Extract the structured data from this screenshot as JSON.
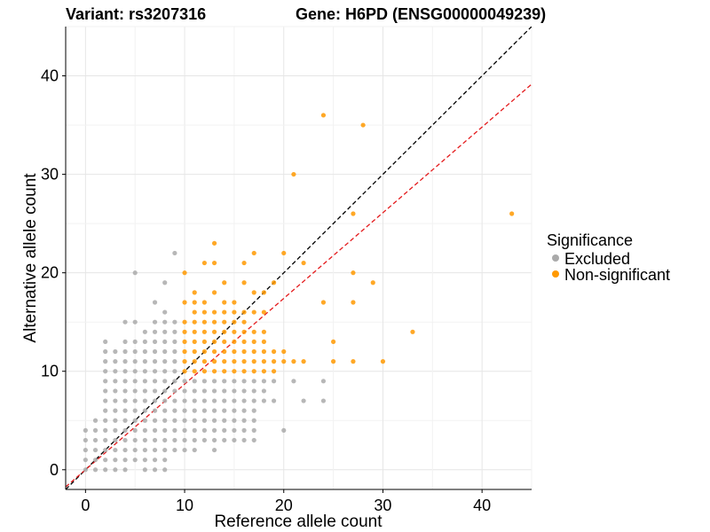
{
  "chart_data": {
    "type": "scatter",
    "title_left": "Variant: rs3207316",
    "title_right": "Gene: H6PD (ENSG00000049239)",
    "xlabel": "Reference allele count",
    "ylabel": "Alternative allele count",
    "xlim": [
      -2,
      45
    ],
    "ylim": [
      -2,
      45
    ],
    "xticks": [
      0,
      10,
      20,
      30,
      40
    ],
    "yticks": [
      0,
      10,
      20,
      30,
      40
    ],
    "grid": true,
    "legend": {
      "title": "Significance",
      "position": "right",
      "entries": [
        {
          "label": "Excluded",
          "color": "#AAAAAA"
        },
        {
          "label": "Non-significant",
          "color": "#FF9900"
        }
      ]
    },
    "reference_lines": [
      {
        "name": "identity",
        "slope": 1,
        "intercept": 0,
        "color": "#000000",
        "dash": true
      },
      {
        "name": "fit",
        "slope": 0.87,
        "intercept": 0,
        "color": "#E41A1C",
        "dash": true
      }
    ],
    "series": [
      {
        "color": "#AAAAAA",
        "points": [
          [
            0,
            0
          ],
          [
            0,
            1
          ],
          [
            0,
            2
          ],
          [
            0,
            3
          ],
          [
            0,
            4
          ],
          [
            1,
            0
          ],
          [
            1,
            1
          ],
          [
            1,
            2
          ],
          [
            1,
            3
          ],
          [
            1,
            4
          ],
          [
            1,
            5
          ],
          [
            2,
            0
          ],
          [
            2,
            1
          ],
          [
            2,
            2
          ],
          [
            2,
            3
          ],
          [
            2,
            4
          ],
          [
            2,
            5
          ],
          [
            2,
            6
          ],
          [
            2,
            7
          ],
          [
            2,
            8
          ],
          [
            2,
            9
          ],
          [
            2,
            10
          ],
          [
            2,
            11
          ],
          [
            2,
            12
          ],
          [
            2,
            13
          ],
          [
            3,
            0
          ],
          [
            3,
            1
          ],
          [
            3,
            2
          ],
          [
            3,
            3
          ],
          [
            3,
            4
          ],
          [
            3,
            5
          ],
          [
            3,
            6
          ],
          [
            3,
            7
          ],
          [
            3,
            8
          ],
          [
            3,
            9
          ],
          [
            3,
            10
          ],
          [
            3,
            11
          ],
          [
            3,
            12
          ],
          [
            4,
            0
          ],
          [
            4,
            1
          ],
          [
            4,
            2
          ],
          [
            4,
            3
          ],
          [
            4,
            4
          ],
          [
            4,
            5
          ],
          [
            4,
            6
          ],
          [
            4,
            7
          ],
          [
            4,
            8
          ],
          [
            4,
            9
          ],
          [
            4,
            10
          ],
          [
            4,
            11
          ],
          [
            4,
            12
          ],
          [
            4,
            13
          ],
          [
            4,
            15
          ],
          [
            5,
            1
          ],
          [
            5,
            2
          ],
          [
            5,
            3
          ],
          [
            5,
            4
          ],
          [
            5,
            5
          ],
          [
            5,
            6
          ],
          [
            5,
            7
          ],
          [
            5,
            8
          ],
          [
            5,
            9
          ],
          [
            5,
            10
          ],
          [
            5,
            11
          ],
          [
            5,
            12
          ],
          [
            5,
            13
          ],
          [
            5,
            15
          ],
          [
            5,
            20
          ],
          [
            6,
            0
          ],
          [
            6,
            1
          ],
          [
            6,
            2
          ],
          [
            6,
            3
          ],
          [
            6,
            4
          ],
          [
            6,
            5
          ],
          [
            6,
            6
          ],
          [
            6,
            7
          ],
          [
            6,
            8
          ],
          [
            6,
            9
          ],
          [
            6,
            10
          ],
          [
            6,
            11
          ],
          [
            6,
            12
          ],
          [
            6,
            13
          ],
          [
            6,
            14
          ],
          [
            7,
            0
          ],
          [
            7,
            1
          ],
          [
            7,
            2
          ],
          [
            7,
            3
          ],
          [
            7,
            4
          ],
          [
            7,
            5
          ],
          [
            7,
            6
          ],
          [
            7,
            7
          ],
          [
            7,
            8
          ],
          [
            7,
            9
          ],
          [
            7,
            10
          ],
          [
            7,
            11
          ],
          [
            7,
            12
          ],
          [
            7,
            13
          ],
          [
            7,
            14
          ],
          [
            7,
            15
          ],
          [
            7,
            17
          ],
          [
            8,
            0
          ],
          [
            8,
            1
          ],
          [
            8,
            2
          ],
          [
            8,
            3
          ],
          [
            8,
            4
          ],
          [
            8,
            5
          ],
          [
            8,
            6
          ],
          [
            8,
            7
          ],
          [
            8,
            8
          ],
          [
            8,
            9
          ],
          [
            8,
            10
          ],
          [
            8,
            11
          ],
          [
            8,
            12
          ],
          [
            8,
            13
          ],
          [
            8,
            14
          ],
          [
            8,
            15
          ],
          [
            8,
            16
          ],
          [
            8,
            19
          ],
          [
            9,
            2
          ],
          [
            9,
            3
          ],
          [
            9,
            4
          ],
          [
            9,
            5
          ],
          [
            9,
            6
          ],
          [
            9,
            7
          ],
          [
            9,
            8
          ],
          [
            9,
            9
          ],
          [
            9,
            10
          ],
          [
            9,
            11
          ],
          [
            9,
            12
          ],
          [
            9,
            13
          ],
          [
            9,
            14
          ],
          [
            9,
            15
          ],
          [
            9,
            22
          ],
          [
            10,
            2
          ],
          [
            10,
            3
          ],
          [
            10,
            4
          ],
          [
            10,
            5
          ],
          [
            10,
            6
          ],
          [
            10,
            7
          ],
          [
            10,
            8
          ],
          [
            10,
            9
          ],
          [
            11,
            2
          ],
          [
            11,
            3
          ],
          [
            11,
            4
          ],
          [
            11,
            5
          ],
          [
            11,
            6
          ],
          [
            11,
            7
          ],
          [
            11,
            8
          ],
          [
            11,
            9
          ],
          [
            12,
            3
          ],
          [
            12,
            4
          ],
          [
            12,
            5
          ],
          [
            12,
            6
          ],
          [
            12,
            7
          ],
          [
            12,
            8
          ],
          [
            12,
            9
          ],
          [
            13,
            2
          ],
          [
            13,
            3
          ],
          [
            13,
            4
          ],
          [
            13,
            5
          ],
          [
            13,
            6
          ],
          [
            13,
            7
          ],
          [
            13,
            8
          ],
          [
            13,
            9
          ],
          [
            14,
            3
          ],
          [
            14,
            4
          ],
          [
            14,
            5
          ],
          [
            14,
            6
          ],
          [
            14,
            7
          ],
          [
            14,
            8
          ],
          [
            14,
            9
          ],
          [
            15,
            3
          ],
          [
            15,
            4
          ],
          [
            15,
            5
          ],
          [
            15,
            6
          ],
          [
            15,
            7
          ],
          [
            15,
            8
          ],
          [
            15,
            9
          ],
          [
            16,
            3
          ],
          [
            16,
            4
          ],
          [
            16,
            5
          ],
          [
            16,
            6
          ],
          [
            16,
            7
          ],
          [
            16,
            8
          ],
          [
            16,
            9
          ],
          [
            17,
            3
          ],
          [
            17,
            4
          ],
          [
            17,
            5
          ],
          [
            17,
            6
          ],
          [
            17,
            7
          ],
          [
            17,
            8
          ],
          [
            17,
            9
          ],
          [
            18,
            7
          ],
          [
            18,
            8
          ],
          [
            18,
            9
          ],
          [
            19,
            7
          ],
          [
            19,
            9
          ],
          [
            20,
            4
          ],
          [
            21,
            9
          ],
          [
            22,
            7
          ],
          [
            24,
            7
          ],
          [
            24,
            9
          ]
        ]
      },
      {
        "color": "#FF9900",
        "points": [
          [
            10,
            10
          ],
          [
            10,
            11
          ],
          [
            10,
            12
          ],
          [
            10,
            13
          ],
          [
            10,
            14
          ],
          [
            10,
            15
          ],
          [
            10,
            17
          ],
          [
            10,
            20
          ],
          [
            11,
            10
          ],
          [
            11,
            11
          ],
          [
            11,
            12
          ],
          [
            11,
            13
          ],
          [
            11,
            14
          ],
          [
            11,
            15
          ],
          [
            11,
            16
          ],
          [
            11,
            17
          ],
          [
            11,
            18
          ],
          [
            12,
            10
          ],
          [
            12,
            11
          ],
          [
            12,
            12
          ],
          [
            12,
            13
          ],
          [
            12,
            14
          ],
          [
            12,
            15
          ],
          [
            12,
            16
          ],
          [
            12,
            17
          ],
          [
            12,
            21
          ],
          [
            13,
            10
          ],
          [
            13,
            11
          ],
          [
            13,
            12
          ],
          [
            13,
            13
          ],
          [
            13,
            14
          ],
          [
            13,
            15
          ],
          [
            13,
            16
          ],
          [
            13,
            18
          ],
          [
            13,
            21
          ],
          [
            13,
            23
          ],
          [
            14,
            10
          ],
          [
            14,
            11
          ],
          [
            14,
            12
          ],
          [
            14,
            13
          ],
          [
            14,
            14
          ],
          [
            14,
            15
          ],
          [
            14,
            16
          ],
          [
            14,
            17
          ],
          [
            14,
            19
          ],
          [
            15,
            10
          ],
          [
            15,
            11
          ],
          [
            15,
            12
          ],
          [
            15,
            13
          ],
          [
            15,
            14
          ],
          [
            15,
            15
          ],
          [
            15,
            16
          ],
          [
            15,
            17
          ],
          [
            16,
            10
          ],
          [
            16,
            11
          ],
          [
            16,
            12
          ],
          [
            16,
            13
          ],
          [
            16,
            14
          ],
          [
            16,
            15
          ],
          [
            16,
            16
          ],
          [
            16,
            19
          ],
          [
            16,
            21
          ],
          [
            17,
            10
          ],
          [
            17,
            11
          ],
          [
            17,
            12
          ],
          [
            17,
            13
          ],
          [
            17,
            14
          ],
          [
            17,
            16
          ],
          [
            17,
            18
          ],
          [
            17,
            22
          ],
          [
            18,
            10
          ],
          [
            18,
            11
          ],
          [
            18,
            12
          ],
          [
            18,
            13
          ],
          [
            18,
            14
          ],
          [
            18,
            16
          ],
          [
            18,
            18
          ],
          [
            19,
            10
          ],
          [
            19,
            11
          ],
          [
            19,
            12
          ],
          [
            19,
            19
          ],
          [
            20,
            11
          ],
          [
            20,
            12
          ],
          [
            20,
            22
          ],
          [
            21,
            11
          ],
          [
            21,
            30
          ],
          [
            22,
            11
          ],
          [
            22,
            21
          ],
          [
            24,
            17
          ],
          [
            24,
            36
          ],
          [
            25,
            11
          ],
          [
            25,
            13
          ],
          [
            27,
            11
          ],
          [
            27,
            17
          ],
          [
            27,
            20
          ],
          [
            27,
            26
          ],
          [
            28,
            35
          ],
          [
            29,
            19
          ],
          [
            30,
            11
          ],
          [
            33,
            14
          ],
          [
            43,
            26
          ]
        ]
      }
    ]
  }
}
